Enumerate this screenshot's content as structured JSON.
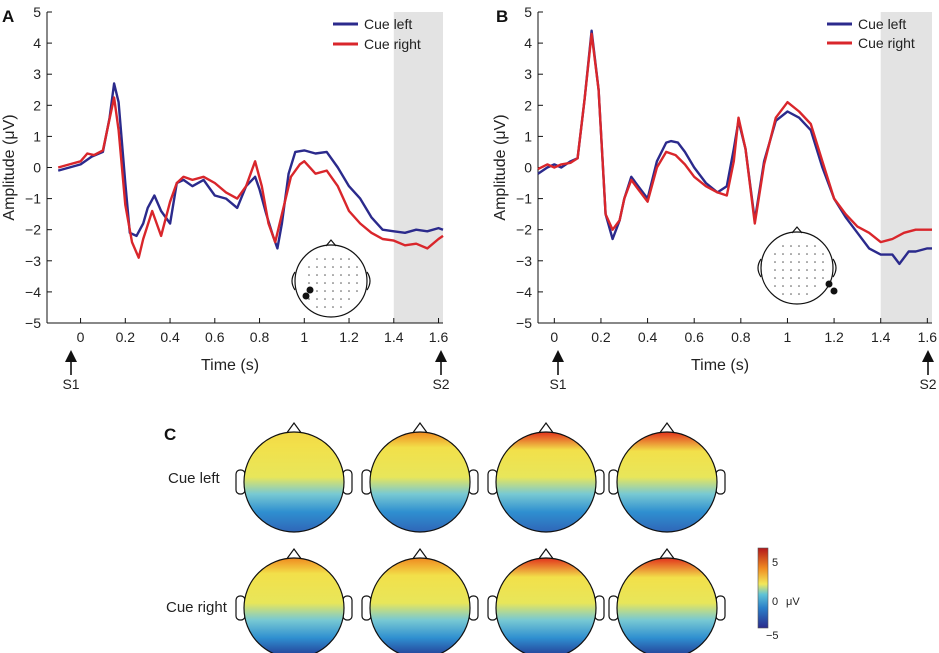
{
  "chart_data": [
    {
      "type": "line",
      "panel": "A",
      "ylabel": "Amplitude (μV)",
      "xlabel": "Time (s)",
      "ylim": [
        -5,
        5
      ],
      "xlim": [
        -0.15,
        1.62
      ],
      "yticks": [
        "5",
        "4",
        "3",
        "2",
        "1",
        "0",
        "−1",
        "−2",
        "−3",
        "−4",
        "−5"
      ],
      "xticks": [
        "0",
        "0.2",
        "0.4",
        "0.6",
        "0.8",
        "1",
        "1.2",
        "1.4",
        "1.6"
      ],
      "shaded_interval": [
        1.4,
        1.62
      ],
      "markers": [
        {
          "label": "S1",
          "x": 0
        },
        {
          "label": "S2",
          "x": 1.6
        }
      ],
      "legend": {
        "position": "top-right"
      },
      "series": [
        {
          "name": "Cue left",
          "color": "#2b2a8c",
          "x": [
            -0.1,
            -0.05,
            0,
            0.05,
            0.1,
            0.13,
            0.15,
            0.17,
            0.2,
            0.22,
            0.25,
            0.28,
            0.3,
            0.33,
            0.36,
            0.4,
            0.43,
            0.46,
            0.5,
            0.55,
            0.6,
            0.65,
            0.7,
            0.74,
            0.78,
            0.8,
            0.83,
            0.86,
            0.88,
            0.9,
            0.93,
            0.96,
            1.0,
            1.05,
            1.1,
            1.15,
            1.2,
            1.25,
            1.3,
            1.35,
            1.4,
            1.45,
            1.5,
            1.55,
            1.6,
            1.62
          ],
          "y": [
            -0.1,
            0.0,
            0.1,
            0.35,
            0.5,
            1.6,
            2.7,
            2.1,
            -0.5,
            -2.1,
            -2.2,
            -1.8,
            -1.3,
            -0.9,
            -1.4,
            -1.8,
            -0.5,
            -0.4,
            -0.6,
            -0.4,
            -0.9,
            -1.0,
            -1.3,
            -0.6,
            -0.3,
            -0.7,
            -1.5,
            -2.2,
            -2.6,
            -1.8,
            -0.2,
            0.5,
            0.55,
            0.45,
            0.5,
            0.0,
            -0.6,
            -1.0,
            -1.6,
            -2.0,
            -2.05,
            -2.1,
            -2.0,
            -2.05,
            -1.95,
            -2.0
          ]
        },
        {
          "name": "Cue right",
          "color": "#d9262b",
          "x": [
            -0.1,
            -0.05,
            0,
            0.03,
            0.06,
            0.1,
            0.15,
            0.17,
            0.2,
            0.23,
            0.26,
            0.28,
            0.32,
            0.36,
            0.4,
            0.43,
            0.46,
            0.5,
            0.55,
            0.6,
            0.65,
            0.7,
            0.74,
            0.78,
            0.81,
            0.84,
            0.87,
            0.9,
            0.94,
            0.98,
            1.0,
            1.05,
            1.1,
            1.15,
            1.2,
            1.25,
            1.3,
            1.35,
            1.4,
            1.45,
            1.5,
            1.55,
            1.6,
            1.62
          ],
          "y": [
            0.0,
            0.1,
            0.2,
            0.45,
            0.4,
            0.55,
            2.25,
            1.2,
            -1.2,
            -2.4,
            -2.9,
            -2.3,
            -1.4,
            -2.2,
            -1.1,
            -0.5,
            -0.3,
            -0.4,
            -0.3,
            -0.5,
            -0.8,
            -1.0,
            -0.6,
            0.2,
            -0.6,
            -1.8,
            -2.4,
            -1.5,
            -0.3,
            0.1,
            0.2,
            -0.2,
            -0.1,
            -0.6,
            -1.4,
            -1.8,
            -2.1,
            -2.3,
            -2.35,
            -2.5,
            -2.45,
            -2.6,
            -2.3,
            -2.2
          ]
        }
      ]
    },
    {
      "type": "line",
      "panel": "B",
      "ylabel": "Amplitude (μV)",
      "xlabel": "Time (s)",
      "ylim": [
        -5,
        5
      ],
      "xlim": [
        -0.07,
        1.62
      ],
      "yticks": [
        "5",
        "4",
        "3",
        "2",
        "1",
        "0",
        "−1",
        "−2",
        "−3",
        "−4",
        "−5"
      ],
      "xticks": [
        "0",
        "0.2",
        "0.4",
        "0.6",
        "0.8",
        "1",
        "1.2",
        "1.4",
        "1.6"
      ],
      "shaded_interval": [
        1.4,
        1.62
      ],
      "markers": [
        {
          "label": "S1",
          "x": 0
        },
        {
          "label": "S2",
          "x": 1.6
        }
      ],
      "legend": {
        "position": "top-right"
      },
      "series": [
        {
          "name": "Cue left",
          "color": "#2b2a8c",
          "x": [
            -0.07,
            -0.03,
            0,
            0.03,
            0.07,
            0.1,
            0.13,
            0.16,
            0.19,
            0.22,
            0.25,
            0.28,
            0.3,
            0.33,
            0.36,
            0.4,
            0.44,
            0.48,
            0.5,
            0.53,
            0.56,
            0.6,
            0.65,
            0.7,
            0.74,
            0.77,
            0.79,
            0.82,
            0.86,
            0.9,
            0.95,
            1.0,
            1.05,
            1.1,
            1.15,
            1.2,
            1.25,
            1.3,
            1.35,
            1.4,
            1.45,
            1.48,
            1.52,
            1.55,
            1.6,
            1.62
          ],
          "y": [
            -0.2,
            0.0,
            0.1,
            0.0,
            0.2,
            0.3,
            2.2,
            4.4,
            2.5,
            -1.5,
            -2.3,
            -1.7,
            -1.0,
            -0.3,
            -0.6,
            -1.0,
            0.2,
            0.8,
            0.85,
            0.8,
            0.5,
            0.0,
            -0.5,
            -0.8,
            -0.6,
            0.6,
            1.5,
            0.6,
            -1.7,
            0.2,
            1.5,
            1.8,
            1.6,
            1.2,
            0.0,
            -1.0,
            -1.6,
            -2.1,
            -2.6,
            -2.8,
            -2.8,
            -3.1,
            -2.7,
            -2.7,
            -2.6,
            -2.6
          ]
        },
        {
          "name": "Cue right",
          "color": "#d9262b",
          "x": [
            -0.07,
            -0.03,
            0,
            0.03,
            0.07,
            0.1,
            0.13,
            0.16,
            0.19,
            0.22,
            0.25,
            0.28,
            0.3,
            0.33,
            0.36,
            0.4,
            0.44,
            0.48,
            0.52,
            0.56,
            0.6,
            0.65,
            0.7,
            0.74,
            0.77,
            0.79,
            0.82,
            0.86,
            0.9,
            0.95,
            1.0,
            1.05,
            1.1,
            1.15,
            1.2,
            1.25,
            1.3,
            1.35,
            1.4,
            1.45,
            1.5,
            1.55,
            1.6,
            1.62
          ],
          "y": [
            -0.05,
            0.1,
            0.0,
            0.1,
            0.15,
            0.3,
            2.2,
            4.3,
            2.5,
            -1.5,
            -2.0,
            -1.7,
            -1.0,
            -0.4,
            -0.7,
            -1.1,
            0.0,
            0.5,
            0.4,
            0.1,
            -0.3,
            -0.6,
            -0.8,
            -0.9,
            0.2,
            1.6,
            0.6,
            -1.8,
            0.1,
            1.6,
            2.1,
            1.8,
            1.4,
            0.2,
            -1.0,
            -1.5,
            -1.9,
            -2.1,
            -2.4,
            -2.3,
            -2.1,
            -2.0,
            -2.0,
            -2.0
          ]
        }
      ]
    },
    {
      "type": "heatmap",
      "panel": "C",
      "rows": [
        "Cue left",
        "Cue right"
      ],
      "columns": 4,
      "colorbar": {
        "min": -5,
        "max": 5,
        "ticks": [
          "5",
          "0",
          "−5"
        ],
        "unit": "μV"
      },
      "frontal_intensity": [
        [
          0.15,
          0.45,
          0.75,
          0.9
        ],
        [
          0.45,
          0.7,
          0.9,
          0.95
        ]
      ]
    }
  ],
  "labels": {
    "panel_a": "A",
    "panel_b": "B",
    "panel_c": "C",
    "s1": "S1",
    "s2": "S2",
    "legend_cue_left": "Cue left",
    "legend_cue_right": "Cue right",
    "row_cue_left": "Cue left",
    "row_cue_right": "Cue right",
    "colorbar_max": "5",
    "colorbar_zero": "0",
    "colorbar_unit": "μV",
    "colorbar_min": "−5"
  }
}
